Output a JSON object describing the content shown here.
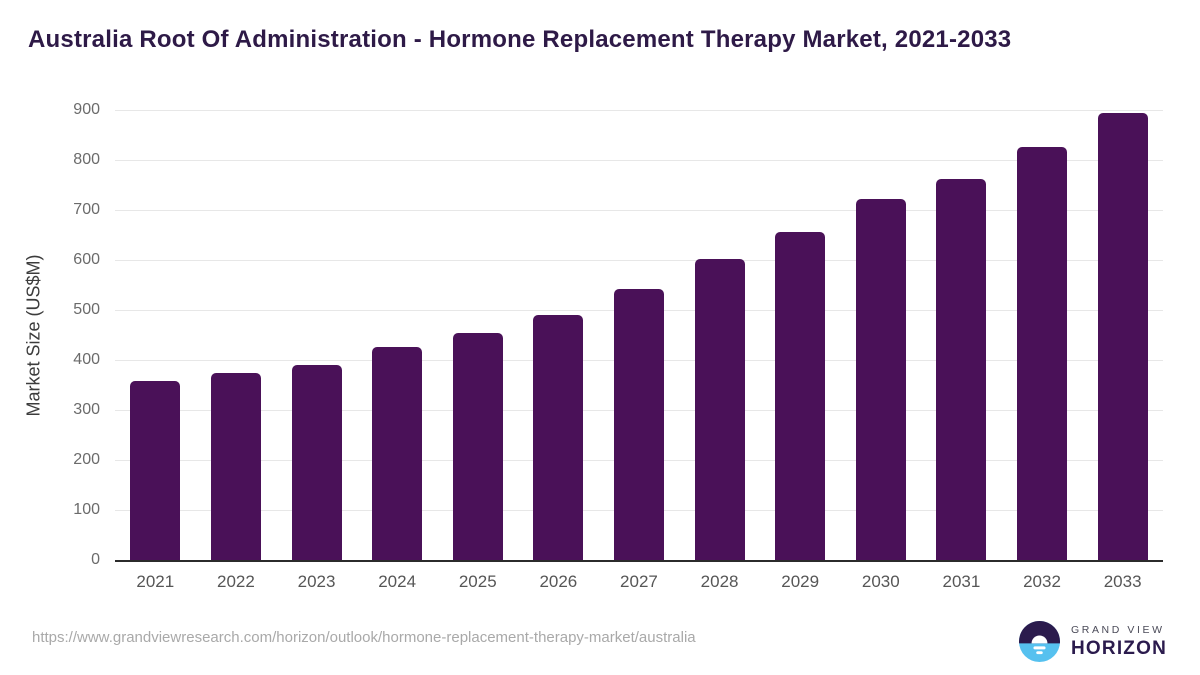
{
  "chart_data": {
    "type": "bar",
    "title": "Australia Root Of Administration - Hormone Replacement Therapy Market, 2021-2033",
    "categories": [
      "2021",
      "2022",
      "2023",
      "2024",
      "2025",
      "2026",
      "2027",
      "2028",
      "2029",
      "2030",
      "2031",
      "2032",
      "2033"
    ],
    "values": [
      358,
      375,
      391,
      426,
      455,
      491,
      543,
      602,
      656,
      722,
      762,
      827,
      895
    ],
    "xlabel": "",
    "ylabel": "Market Size (US$M)",
    "ylim": [
      0,
      900
    ],
    "ytick_interval": 100,
    "grid": true,
    "legend": false,
    "bar_color": "#4a1158"
  },
  "footer": {
    "source_url": "https://www.grandviewresearch.com/horizon/outlook/hormone-replacement-therapy-market/australia",
    "logo": {
      "line1": "GRAND VIEW",
      "line2": "HORIZON"
    }
  },
  "colors": {
    "bar": "#4a1158",
    "title": "#2e1a47",
    "axis_label": "#6b6b6b",
    "x_label": "#565656",
    "gridline": "#e7e7e7",
    "axis_line": "#2b2b2b",
    "url": "#a9a9a9",
    "logo_dark": "#2b1b4d",
    "logo_blue": "#56c1ef"
  }
}
